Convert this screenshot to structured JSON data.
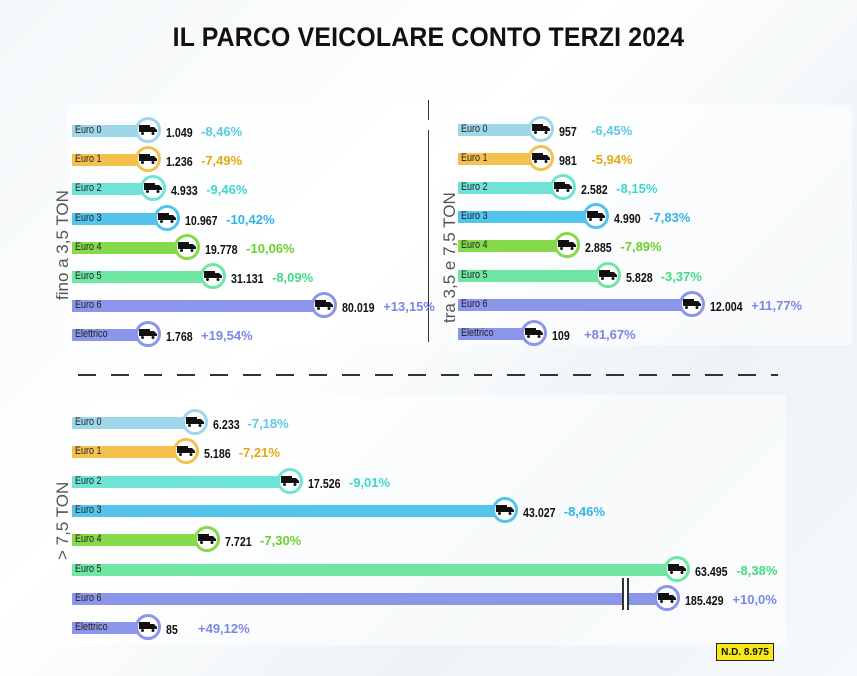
{
  "title": "IL PARCO VEICOLARE CONTO TERZI 2024",
  "note": "N.D. 8.975",
  "colors": {
    "Euro 0": "#9fd7ea",
    "Euro 1": "#f4c04e",
    "Euro 2": "#6fe3d6",
    "Euro 3": "#54c4ec",
    "Euro 4": "#86d94a",
    "Euro 5": "#6fe6a4",
    "Euro 6": "#8b96ea",
    "Elettrico": "#8b96ea"
  },
  "pct_colors": {
    "Euro 0": "#5cc8e6",
    "Euro 1": "#e6a812",
    "Euro 2": "#3fd6cd",
    "Euro 3": "#2fb4e8",
    "Euro 4": "#6bd12a",
    "Euro 5": "#3fdc86",
    "Euro 6": "#7b86e8",
    "Elettrico": "#7b86e8"
  },
  "chart_data": [
    {
      "type": "bar",
      "title": "fino a 3,5 TON",
      "categories": [
        "Euro 0",
        "Euro 1",
        "Euro 2",
        "Euro 3",
        "Euro 4",
        "Euro 5",
        "Euro 6",
        "Elettrico"
      ],
      "values": [
        1049,
        1236,
        4933,
        10967,
        19778,
        31131,
        80019,
        1768
      ],
      "value_labels": [
        "1.049",
        "1.236",
        "4.933",
        "10.967",
        "19.778",
        "31.131",
        "80.019",
        "1.768"
      ],
      "change_labels": [
        "-8,46%",
        "-7,49%",
        "-9,46%",
        "-10,42%",
        "-10,06%",
        "-8,09%",
        "+13,15%",
        "+19,54%"
      ]
    },
    {
      "type": "bar",
      "title": "tra 3,5 e 7,5 TON",
      "categories": [
        "Euro 0",
        "Euro 1",
        "Euro 2",
        "Euro 3",
        "Euro 4",
        "Euro 5",
        "Euro 6",
        "Elettrico"
      ],
      "values": [
        957,
        981,
        2582,
        4990,
        2885,
        5828,
        12004,
        109
      ],
      "value_labels": [
        "957",
        "981",
        "2.582",
        "4.990",
        "2.885",
        "5.828",
        "12.004",
        "109"
      ],
      "change_labels": [
        "-6,45%",
        "-5,94%",
        "-8,15%",
        "-7,83%",
        "-7,89%",
        "-3,37%",
        "+11,77%",
        "+81,67%"
      ]
    },
    {
      "type": "bar",
      "title": "> 7,5 TON",
      "categories": [
        "Euro 0",
        "Euro 1",
        "Euro 2",
        "Euro 3",
        "Euro 4",
        "Euro 5",
        "Euro 6",
        "Elettrico"
      ],
      "values": [
        6233,
        5186,
        17526,
        43027,
        7721,
        63495,
        185429,
        85
      ],
      "value_labels": [
        "6.233",
        "5.186",
        "17.526",
        "43.027",
        "7.721",
        "63.495",
        "185.429",
        "85"
      ],
      "change_labels": [
        "-7,18%",
        "-7,21%",
        "-9,01%",
        "-8,46%",
        "-7,30%",
        "-8,38%",
        "+10,0%",
        "+49,12%"
      ],
      "axis_break_on": "Euro 6"
    }
  ]
}
